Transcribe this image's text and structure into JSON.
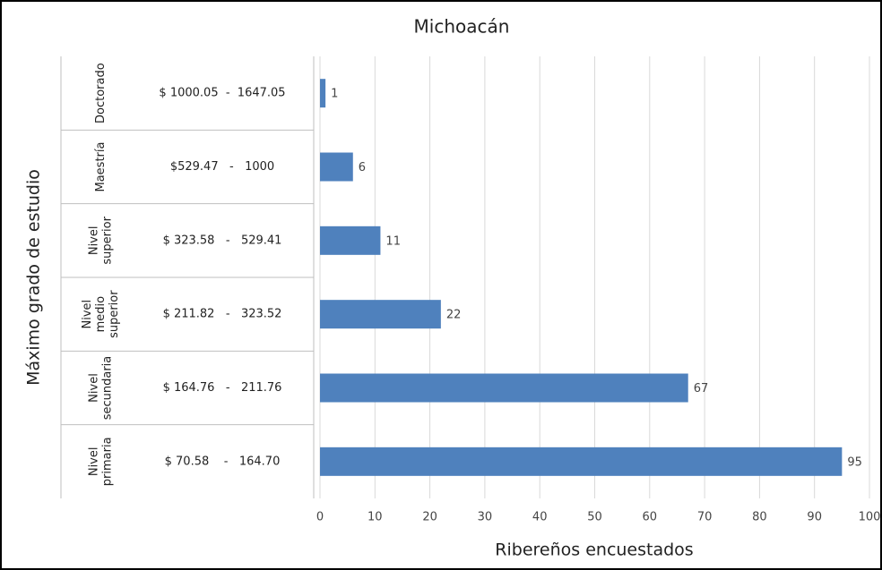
{
  "chart_data": {
    "type": "barh",
    "title": "Michoacán",
    "xlabel": "Ribereños encuestados",
    "ylabel": "Máximo grado de estudio",
    "groups": [
      "Doctorado",
      "Maestría",
      "Nivel superior",
      "Nivel medio superior",
      "Nivel secundaria",
      "Nivel primaria"
    ],
    "categories": [
      "$ 1000.05  -  1647.05",
      "$529.47   -   1000",
      "$ 323.58   -   529.41",
      "$ 211.82   -   323.52",
      "$ 164.76   -   211.76",
      "$ 70.58    -   164.70"
    ],
    "values": [
      1,
      6,
      11,
      22,
      67,
      95
    ],
    "color": "#4f81bd",
    "xlim": [
      0,
      100
    ],
    "xticks": [
      0,
      10,
      20,
      30,
      40,
      50,
      60,
      70,
      80,
      90,
      100
    ],
    "grid": true
  }
}
